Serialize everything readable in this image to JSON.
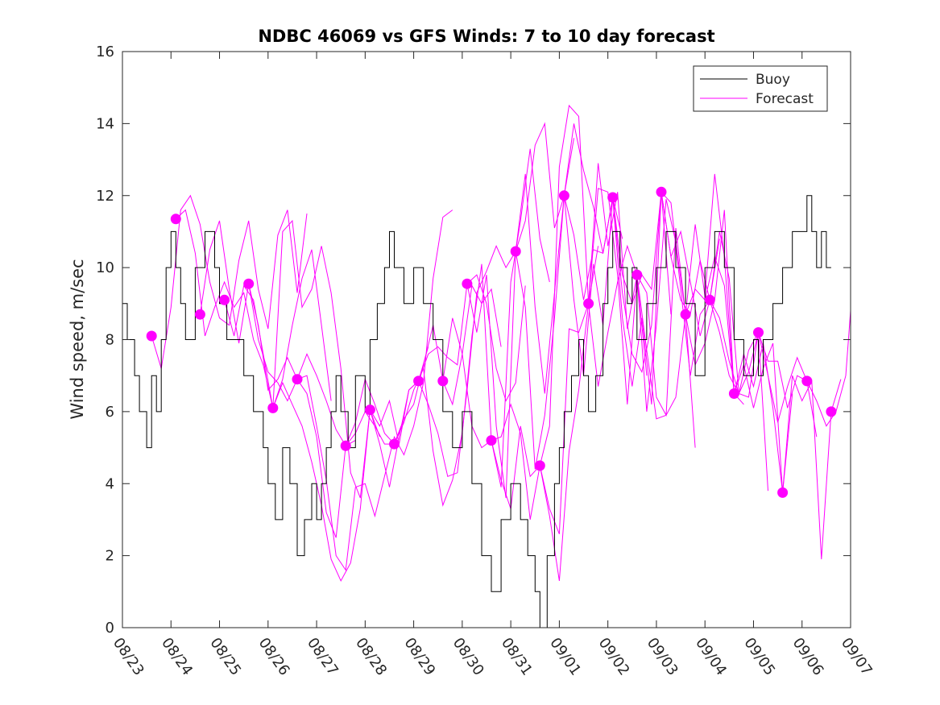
{
  "chart_data": {
    "type": "line",
    "title": "NDBC 46069 vs GFS Winds: 7 to 10 day forecast",
    "xlabel": "",
    "ylabel": "Wind speed, m/sec",
    "x_unit": "days since 08/23",
    "xlim": [
      0,
      15
    ],
    "ylim": [
      0,
      16
    ],
    "yticks": [
      0,
      2,
      4,
      6,
      8,
      10,
      12,
      14,
      16
    ],
    "xtick_labels": [
      "08/23",
      "08/24",
      "08/25",
      "08/26",
      "08/27",
      "08/28",
      "08/29",
      "08/30",
      "08/31",
      "09/01",
      "09/02",
      "09/03",
      "09/04",
      "09/05",
      "09/06",
      "09/07"
    ],
    "grid": false,
    "legend": {
      "location": "top-right",
      "entries": [
        "Buoy",
        "Forecast"
      ]
    },
    "colors": {
      "buoy": "#000000",
      "forecast": "#ff00ff",
      "axis": "#262626",
      "background": "#ffffff"
    },
    "buoy": {
      "name": "Buoy",
      "x": [
        0,
        0.1,
        0.25,
        0.35,
        0.5,
        0.6,
        0.7,
        0.8,
        0.9,
        1.0,
        1.1,
        1.2,
        1.3,
        1.5,
        1.7,
        1.9,
        2.0,
        2.15,
        2.3,
        2.5,
        2.7,
        2.9,
        3.0,
        3.15,
        3.3,
        3.45,
        3.6,
        3.75,
        3.9,
        4.0,
        4.1,
        4.2,
        4.3,
        4.4,
        4.5,
        4.65,
        4.8,
        5.0,
        5.1,
        5.25,
        5.4,
        5.5,
        5.6,
        5.8,
        6.0,
        6.2,
        6.4,
        6.6,
        6.8,
        7.0,
        7.2,
        7.4,
        7.6,
        7.8,
        8.0,
        8.2,
        8.35,
        8.5,
        8.6,
        8.75,
        8.9,
        9.0,
        9.1,
        9.25,
        9.4,
        9.5,
        9.6,
        9.75,
        9.9,
        10.0,
        10.1,
        10.25,
        10.4,
        10.5,
        10.6,
        10.8,
        11.0,
        11.2,
        11.4,
        11.6,
        11.8,
        12.0,
        12.2,
        12.4,
        12.6,
        12.8,
        13.0,
        13.1,
        13.2,
        13.4,
        13.6,
        13.8,
        14.0,
        14.1,
        14.2,
        14.3,
        14.4,
        14.5,
        14.6
      ],
      "y": [
        9,
        8,
        7,
        6,
        5,
        7,
        6,
        8,
        10,
        11,
        10,
        9,
        8,
        10,
        11,
        10,
        9,
        8,
        8,
        7,
        6,
        5,
        4,
        3,
        5,
        4,
        2,
        3,
        4,
        3,
        4,
        5,
        6,
        7,
        6,
        5,
        7,
        6,
        8,
        9,
        10,
        11,
        10,
        9,
        10,
        9,
        8,
        6,
        5,
        6,
        4,
        2,
        1,
        3,
        4,
        3,
        2,
        1,
        0,
        2,
        4,
        5,
        6,
        7,
        8,
        7,
        6,
        7,
        9,
        10,
        11,
        10,
        9,
        10,
        8,
        9,
        10,
        11,
        10,
        9,
        7,
        10,
        11,
        10,
        8,
        7,
        8,
        7,
        8,
        9,
        10,
        11,
        11,
        12,
        11,
        10,
        11,
        10,
        10
      ]
    },
    "forecast_points": {
      "name": "Forecast daily markers",
      "x": [
        0.6,
        1.1,
        1.6,
        2.1,
        2.6,
        3.1,
        3.6,
        4.6,
        5.1,
        5.6,
        6.1,
        6.6,
        7.1,
        7.6,
        8.1,
        8.6,
        9.1,
        9.6,
        10.1,
        10.6,
        11.1,
        11.6,
        12.1,
        12.6,
        13.1,
        13.6,
        14.1,
        14.6
      ],
      "y": [
        8.1,
        11.35,
        8.7,
        9.1,
        9.55,
        6.1,
        6.9,
        5.05,
        6.05,
        5.1,
        6.85,
        6.85,
        9.55,
        5.2,
        10.45,
        4.5,
        12.0,
        9.0,
        11.95,
        9.8,
        12.1,
        8.7,
        9.1,
        6.5,
        8.2,
        3.75,
        6.85,
        6.0
      ]
    },
    "series": [
      {
        "name": "Forecast",
        "x": [
          0.6,
          0.8,
          1.0,
          1.2,
          1.4,
          1.6,
          1.8,
          2.0,
          2.2,
          2.4,
          2.6,
          2.8,
          3.0,
          3.2,
          3.4,
          3.6,
          3.8
        ],
        "y": [
          8.1,
          7.2,
          8.9,
          11.6,
          12.0,
          11.2,
          9.6,
          8.6,
          8.4,
          10.2,
          11.3,
          9.4,
          8.3,
          10.9,
          11.6,
          9.3,
          11.5
        ]
      },
      {
        "name": "Forecast",
        "x": [
          1.1,
          1.3,
          1.5,
          1.7,
          1.9,
          2.1,
          2.3,
          2.5,
          2.7,
          2.9,
          3.1,
          3.3,
          3.5,
          3.7,
          3.9,
          4.1,
          4.3
        ],
        "y": [
          11.35,
          11.6,
          10.4,
          8.1,
          8.9,
          9.6,
          8.9,
          9.3,
          8.0,
          7.3,
          6.1,
          6.9,
          8.4,
          9.7,
          10.5,
          8.4,
          6.3
        ]
      },
      {
        "name": "Forecast",
        "x": [
          1.6,
          1.8,
          2.0,
          2.2,
          2.4,
          2.6,
          2.8,
          3.0,
          3.2,
          3.4,
          3.6,
          3.8,
          4.0,
          4.2,
          4.4,
          4.6,
          4.8
        ],
        "y": [
          8.7,
          10.5,
          11.3,
          9.4,
          7.9,
          9.55,
          8.4,
          6.6,
          6.9,
          7.5,
          6.9,
          7.6,
          7.0,
          6.3,
          5.5,
          5.05,
          5.2
        ]
      },
      {
        "name": "Forecast",
        "x": [
          2.1,
          2.3,
          2.5,
          2.7,
          2.9,
          3.1,
          3.3,
          3.5,
          3.7,
          3.9,
          4.1,
          4.3,
          4.5,
          4.7,
          4.9,
          5.1,
          5.3
        ],
        "y": [
          9.1,
          8.1,
          9.5,
          9.1,
          7.6,
          6.1,
          6.8,
          6.2,
          5.6,
          4.6,
          3.4,
          1.9,
          1.3,
          1.8,
          3.3,
          6.05,
          5.3
        ]
      },
      {
        "name": "Forecast",
        "x": [
          2.6,
          2.8,
          3.0,
          3.2,
          3.4,
          3.6,
          3.8,
          4.0,
          4.2,
          4.4,
          4.6,
          4.8,
          5.0,
          5.2,
          5.4,
          5.6,
          5.8
        ],
        "y": [
          9.55,
          8.0,
          7.1,
          6.8,
          6.3,
          6.9,
          6.5,
          5.3,
          3.2,
          2.5,
          5.05,
          5.4,
          6.0,
          5.6,
          5.1,
          5.1,
          5.8
        ]
      },
      {
        "name": "Forecast",
        "x": [
          3.1,
          3.3,
          3.5,
          3.7,
          3.9,
          4.1,
          4.3,
          4.5,
          4.7,
          4.9,
          5.1,
          5.3,
          5.5,
          5.7,
          5.9,
          6.1,
          6.3
        ],
        "y": [
          6.1,
          11.0,
          11.3,
          8.9,
          9.4,
          10.6,
          9.3,
          7.2,
          4.3,
          3.6,
          6.05,
          5.6,
          6.3,
          5.1,
          6.6,
          6.85,
          7.8
        ]
      },
      {
        "name": "Forecast",
        "x": [
          3.6,
          3.8,
          4.0,
          4.2,
          4.4,
          4.6,
          4.8,
          5.0,
          5.2,
          5.4,
          5.6,
          5.8,
          6.0,
          6.2,
          6.4,
          6.6,
          6.8
        ],
        "y": [
          6.9,
          7.0,
          5.6,
          4.1,
          2.0,
          1.6,
          3.9,
          4.0,
          3.1,
          4.2,
          5.3,
          4.8,
          5.6,
          6.8,
          9.7,
          11.4,
          11.6
        ]
      },
      {
        "name": "Forecast",
        "x": [
          4.6,
          4.8,
          5.0,
          5.2,
          5.4,
          5.6,
          5.8,
          6.0,
          6.2,
          6.4,
          6.6,
          6.8,
          7.0,
          7.2,
          7.4,
          7.6,
          7.8
        ],
        "y": [
          5.05,
          5.7,
          6.9,
          6.2,
          5.4,
          5.1,
          5.8,
          6.2,
          7.3,
          8.4,
          6.85,
          6.2,
          7.6,
          9.5,
          9.0,
          9.4,
          7.8
        ]
      },
      {
        "name": "Forecast",
        "x": [
          5.1,
          5.3,
          5.5,
          5.7,
          5.9,
          6.1,
          6.3,
          6.5,
          6.7,
          6.9,
          7.1,
          7.3,
          7.5,
          7.7,
          7.9,
          8.1,
          8.3
        ],
        "y": [
          6.05,
          5.1,
          3.9,
          5.3,
          6.6,
          6.85,
          7.6,
          7.8,
          7.5,
          7.3,
          9.55,
          9.8,
          9.0,
          7.2,
          6.3,
          6.8,
          9.5
        ]
      },
      {
        "name": "Forecast",
        "x": [
          5.6,
          5.8,
          6.0,
          6.2,
          6.4,
          6.6,
          6.8,
          7.0,
          7.2,
          7.4,
          7.6,
          7.8,
          8.0,
          8.2,
          8.4,
          8.6,
          8.8
        ],
        "y": [
          5.1,
          5.7,
          6.6,
          7.2,
          4.9,
          3.4,
          4.1,
          5.4,
          8.1,
          10.1,
          5.2,
          3.9,
          9.6,
          11.3,
          13.3,
          10.8,
          9.6
        ]
      },
      {
        "name": "Forecast",
        "x": [
          6.1,
          6.3,
          6.5,
          6.7,
          6.9,
          7.1,
          7.3,
          7.5,
          7.7,
          7.9,
          8.1,
          8.3,
          8.5,
          8.7,
          8.9,
          9.1,
          9.3
        ],
        "y": [
          6.85,
          6.2,
          5.4,
          4.2,
          4.3,
          6.6,
          9.3,
          9.9,
          10.6,
          10.0,
          10.45,
          11.3,
          13.4,
          14.0,
          11.1,
          12.0,
          13.6
        ]
      },
      {
        "name": "Forecast",
        "x": [
          6.6,
          6.8,
          7.0,
          7.2,
          7.4,
          7.6,
          7.8,
          8.0,
          8.2,
          8.4,
          8.6,
          8.8,
          9.0,
          9.2,
          9.4,
          9.6,
          9.8
        ],
        "y": [
          6.85,
          8.6,
          7.6,
          5.6,
          5.0,
          5.2,
          4.1,
          3.3,
          5.6,
          4.2,
          4.5,
          5.6,
          12.8,
          14.5,
          14.2,
          9.0,
          10.6
        ]
      },
      {
        "name": "Forecast",
        "x": [
          7.1,
          7.3,
          7.5,
          7.7,
          7.9,
          8.1,
          8.3,
          8.5,
          8.7,
          8.9,
          9.1,
          9.3,
          9.5,
          9.7,
          9.9,
          10.1,
          10.3
        ],
        "y": [
          9.55,
          8.2,
          9.8,
          5.6,
          3.6,
          10.45,
          12.6,
          8.9,
          6.5,
          9.3,
          12.0,
          14.0,
          12.7,
          11.7,
          10.4,
          11.95,
          10.8
        ]
      },
      {
        "name": "Forecast",
        "x": [
          7.6,
          7.8,
          8.0,
          8.2,
          8.4,
          8.6,
          8.8,
          9.0,
          9.2,
          9.4,
          9.6,
          9.8,
          10.0,
          10.2,
          10.4,
          10.6,
          10.8
        ],
        "y": [
          5.2,
          5.3,
          6.2,
          5.4,
          3.0,
          4.5,
          3.3,
          2.6,
          8.3,
          8.2,
          9.0,
          12.2,
          12.1,
          9.8,
          6.2,
          9.8,
          7.0
        ]
      },
      {
        "name": "Forecast",
        "x": [
          8.1,
          8.3,
          8.5,
          8.7,
          8.9,
          9.1,
          9.3,
          9.5,
          9.7,
          9.9,
          10.1,
          10.3,
          10.5,
          10.7,
          10.9,
          11.1,
          11.3
        ],
        "y": [
          10.45,
          8.9,
          4.4,
          5.9,
          8.6,
          12.0,
          9.1,
          7.0,
          10.1,
          8.4,
          11.95,
          8.6,
          6.7,
          8.6,
          6.2,
          12.1,
          8.7
        ]
      },
      {
        "name": "Forecast",
        "x": [
          8.6,
          8.8,
          9.0,
          9.2,
          9.4,
          9.6,
          9.8,
          10.0,
          10.2,
          10.4,
          10.6,
          10.8,
          11.0,
          11.2,
          11.4,
          11.6,
          11.8
        ],
        "y": [
          4.5,
          3.1,
          1.3,
          4.9,
          6.6,
          9.0,
          12.9,
          10.6,
          12.1,
          8.3,
          9.8,
          9.3,
          6.4,
          5.9,
          11.1,
          8.7,
          5.0
        ]
      },
      {
        "name": "Forecast",
        "x": [
          9.1,
          9.3,
          9.5,
          9.7,
          9.9,
          10.1,
          10.3,
          10.5,
          10.7,
          10.9,
          11.1,
          11.3,
          11.5,
          11.7,
          11.9,
          12.1,
          12.3
        ],
        "y": [
          12.0,
          10.9,
          9.1,
          10.5,
          10.4,
          11.95,
          9.8,
          9.0,
          9.8,
          9.4,
          12.1,
          10.3,
          11.0,
          9.6,
          8.1,
          9.1,
          10.8
        ]
      },
      {
        "name": "Forecast",
        "x": [
          9.6,
          9.8,
          10.0,
          10.2,
          10.4,
          10.6,
          10.8,
          11.0,
          11.2,
          11.4,
          11.6,
          11.8,
          12.0,
          12.2,
          12.4,
          12.6,
          12.8
        ],
        "y": [
          9.0,
          6.7,
          8.2,
          9.6,
          10.6,
          9.8,
          6.0,
          8.4,
          11.9,
          10.7,
          8.7,
          7.3,
          7.9,
          9.1,
          11.6,
          6.5,
          6.2
        ]
      },
      {
        "name": "Forecast",
        "x": [
          10.1,
          10.3,
          10.5,
          10.7,
          10.9,
          11.1,
          11.3,
          11.5,
          11.7,
          11.9,
          12.1,
          12.3,
          12.5,
          12.7,
          12.9,
          13.1,
          13.3
        ],
        "y": [
          11.95,
          9.3,
          7.6,
          7.1,
          8.4,
          12.1,
          11.8,
          9.4,
          7.0,
          8.7,
          9.1,
          8.2,
          7.0,
          6.5,
          6.4,
          8.2,
          3.8
        ]
      },
      {
        "name": "Forecast",
        "x": [
          10.6,
          10.8,
          11.0,
          11.2,
          11.4,
          11.6,
          11.8,
          12.0,
          12.2,
          12.4,
          12.6,
          12.8,
          13.0,
          13.2,
          13.4,
          13.6,
          13.8
        ],
        "y": [
          9.8,
          7.7,
          5.8,
          5.9,
          6.4,
          8.7,
          9.4,
          9.1,
          10.3,
          9.5,
          6.5,
          7.6,
          6.7,
          7.9,
          6.1,
          3.75,
          6.5
        ]
      },
      {
        "name": "Forecast",
        "x": [
          11.1,
          11.3,
          11.5,
          11.7,
          11.9,
          12.1,
          12.3,
          12.5,
          12.7,
          12.9,
          13.1,
          13.3,
          13.5,
          13.7,
          13.9,
          14.1,
          14.3
        ],
        "y": [
          12.1,
          10.3,
          9.1,
          8.7,
          10.2,
          9.1,
          8.6,
          7.4,
          6.5,
          7.7,
          8.2,
          7.0,
          5.7,
          6.7,
          7.5,
          6.85,
          5.3
        ]
      },
      {
        "name": "Forecast",
        "x": [
          11.6,
          11.8,
          12.0,
          12.2,
          12.4,
          12.6,
          12.8,
          13.0,
          13.2,
          13.4,
          13.6,
          13.8,
          14.0,
          14.2,
          14.4,
          14.6,
          14.8
        ],
        "y": [
          8.7,
          11.2,
          9.2,
          12.6,
          10.3,
          6.5,
          7.3,
          6.1,
          7.2,
          7.9,
          3.75,
          7.0,
          6.3,
          6.85,
          1.9,
          6.0,
          6.9
        ]
      },
      {
        "name": "Forecast",
        "x": [
          12.1,
          12.3,
          12.5,
          12.7,
          12.9,
          13.1,
          13.3,
          13.5,
          13.7,
          13.9,
          14.1,
          14.3,
          14.5,
          14.7,
          14.9,
          15.0
        ],
        "y": [
          9.1,
          11.0,
          9.7,
          6.5,
          7.1,
          8.2,
          7.4,
          7.4,
          6.1,
          7.0,
          6.85,
          6.3,
          5.6,
          6.0,
          7.0,
          8.8
        ]
      }
    ]
  }
}
